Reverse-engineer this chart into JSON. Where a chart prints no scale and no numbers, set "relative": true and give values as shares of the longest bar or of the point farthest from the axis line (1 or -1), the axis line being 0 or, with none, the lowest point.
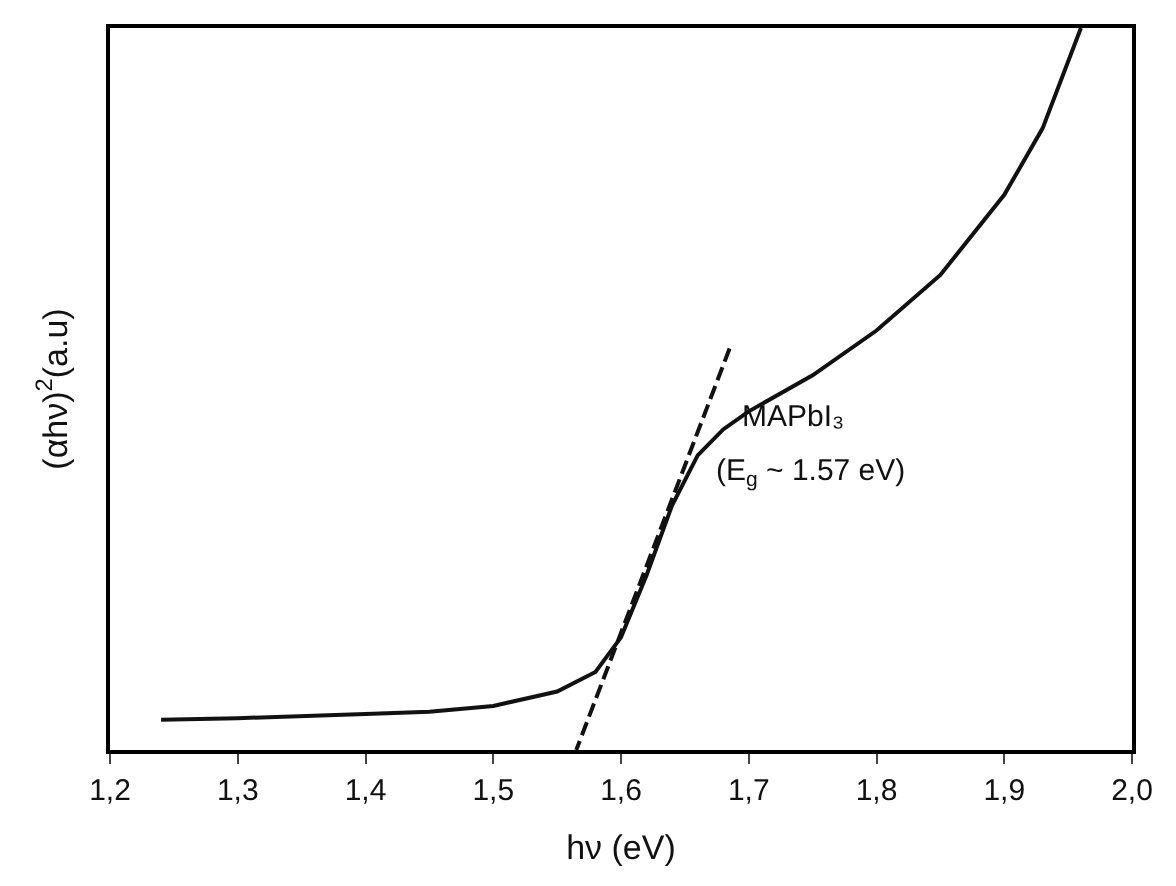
{
  "chart_data": {
    "type": "line",
    "relative": true,
    "xlabel": "hν (eV)",
    "ylabel": "(αhν)$^{2}$(a.u)",
    "xlim": [
      1.2,
      2.0
    ],
    "xticks": [
      {
        "value": 1.2,
        "label": "1,2"
      },
      {
        "value": 1.3,
        "label": "1,3"
      },
      {
        "value": 1.4,
        "label": "1,4"
      },
      {
        "value": 1.5,
        "label": "1,5"
      },
      {
        "value": 1.6,
        "label": "1,6"
      },
      {
        "value": 1.7,
        "label": "1,7"
      },
      {
        "value": 1.8,
        "label": "1,8"
      },
      {
        "value": 1.9,
        "label": "1,9"
      },
      {
        "value": 2.0,
        "label": "2,0"
      }
    ],
    "series": [
      {
        "color": "#111111",
        "line_style": "solid",
        "x": [
          1.24,
          1.3,
          1.4,
          1.45,
          1.5,
          1.55,
          1.58,
          1.6,
          1.62,
          1.64,
          1.66,
          1.68,
          1.7,
          1.75,
          1.8,
          1.85,
          1.9,
          1.93,
          1.96
        ],
        "values": [
          0.042,
          0.044,
          0.05,
          0.053,
          0.061,
          0.081,
          0.108,
          0.156,
          0.242,
          0.339,
          0.408,
          0.444,
          0.469,
          0.519,
          0.581,
          0.658,
          0.769,
          0.861,
          1.0
        ]
      },
      {
        "type": "line",
        "color": "#111111",
        "line_style": "dashed",
        "x": [
          1.685,
          1.565
        ],
        "values": [
          0.556,
          0.0
        ]
      }
    ],
    "annotations": [
      "MAPbI₃",
      "(E$_{g}$ ~ 1.57 eV)"
    ],
    "marker": "none"
  }
}
